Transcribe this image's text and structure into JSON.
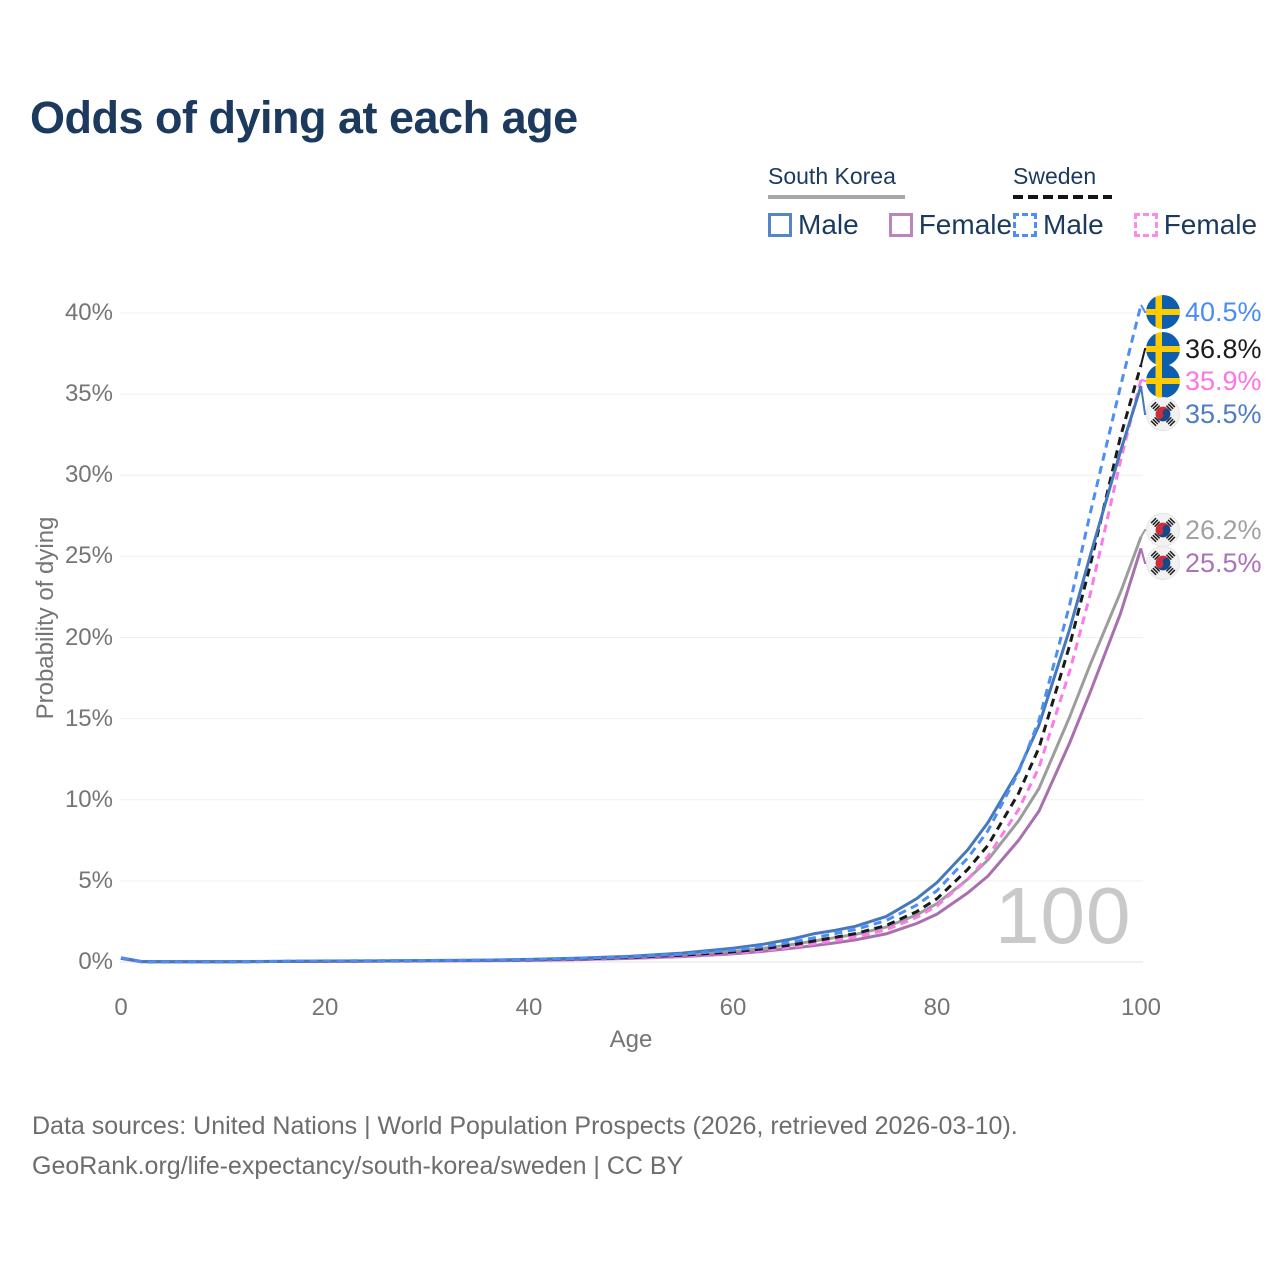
{
  "title": "Odds of dying at each age",
  "watermark": "100",
  "legend": {
    "groups": [
      {
        "country": "South Korea",
        "line": {
          "color": "#a7a7a7",
          "dashed": false
        },
        "items": [
          {
            "label": "Male",
            "color": "#5585c6",
            "dashed": false
          },
          {
            "label": "Female",
            "color": "#bb85bb",
            "dashed": false
          }
        ]
      },
      {
        "country": "Sweden",
        "line": {
          "color": "#141414",
          "dashed": true
        },
        "items": [
          {
            "label": "Male",
            "color": "#4d8ef5",
            "dashed": true
          },
          {
            "label": "Female",
            "color": "#fb8ce8",
            "dashed": true
          }
        ]
      }
    ]
  },
  "axes": {
    "y": {
      "title": "Probability of dying",
      "ticks": [
        "0%",
        "5%",
        "10%",
        "15%",
        "20%",
        "25%",
        "30%",
        "35%",
        "40%"
      ]
    },
    "x": {
      "title": "Age",
      "ticks": [
        "0",
        "20",
        "40",
        "60",
        "80",
        "100"
      ]
    }
  },
  "end_labels": [
    {
      "flag": "sweden",
      "value": "40.5%",
      "color": "#4a8cf7",
      "series": "sweden_male"
    },
    {
      "flag": "sweden",
      "value": "36.8%",
      "color": "#1b1b1b",
      "series": "sweden_combined"
    },
    {
      "flag": "sweden",
      "value": "35.9%",
      "color": "#ff74e4",
      "series": "sweden_female"
    },
    {
      "flag": "south-korea",
      "value": "35.5%",
      "color": "#4e7dc4",
      "series": "south_korea_male"
    },
    {
      "flag": "south-korea",
      "value": "26.2%",
      "color": "#a2a2a2",
      "series": "south_korea_combined"
    },
    {
      "flag": "south-korea",
      "value": "25.5%",
      "color": "#ab73b8",
      "series": "south_korea_female"
    }
  ],
  "footer": {
    "line1": "Data sources: United Nations | World Population Prospects (2026, retrieved 2026-03-10).",
    "line2": "GeoRank.org/life-expectancy/south-korea/sweden | CC BY"
  },
  "chart_data": {
    "type": "line",
    "title": "Odds of dying at each age",
    "xlabel": "Age",
    "ylabel": "Probability of dying",
    "units": "percent",
    "xlim": [
      0,
      100
    ],
    "ylim": [
      0,
      40
    ],
    "x_ticks": [
      0,
      20,
      40,
      60,
      80,
      100
    ],
    "y_ticks": [
      0,
      5,
      10,
      15,
      20,
      25,
      30,
      35,
      40
    ],
    "grid": "horizontal",
    "legend_position": "top-right",
    "ages": [
      0,
      2,
      5,
      10,
      15,
      20,
      25,
      30,
      35,
      40,
      45,
      50,
      55,
      60,
      63,
      66,
      68,
      70,
      72,
      75,
      78,
      80,
      83,
      85,
      88,
      90,
      93,
      95,
      98,
      100
    ],
    "series": [
      {
        "name": "sweden_male",
        "country": "Sweden",
        "sex": "Male",
        "style": "dashed",
        "color": "#4d8ef5",
        "end_value_pct": 40.5,
        "values": [
          0.25,
          0.02,
          0.01,
          0.01,
          0.04,
          0.07,
          0.08,
          0.09,
          0.11,
          0.15,
          0.22,
          0.32,
          0.48,
          0.72,
          0.95,
          1.25,
          1.5,
          1.75,
          2.0,
          2.55,
          3.5,
          4.4,
          6.4,
          8.1,
          11.7,
          14.9,
          22.0,
          27.6,
          35.5,
          40.5
        ]
      },
      {
        "name": "sweden_combined",
        "country": "Sweden",
        "sex": "Both",
        "style": "dashed",
        "color": "#1a1a1a",
        "end_value_pct": 36.8,
        "values": [
          0.24,
          0.02,
          0.01,
          0.01,
          0.03,
          0.05,
          0.06,
          0.08,
          0.1,
          0.13,
          0.19,
          0.28,
          0.42,
          0.62,
          0.82,
          1.08,
          1.3,
          1.52,
          1.75,
          2.25,
          3.1,
          3.9,
          5.7,
          7.2,
          10.4,
          13.2,
          19.5,
          24.4,
          32.4,
          36.8
        ]
      },
      {
        "name": "sweden_female",
        "country": "Sweden",
        "sex": "Female",
        "style": "dashed",
        "color": "#fb7ce8",
        "end_value_pct": 35.9,
        "values": [
          0.23,
          0.02,
          0.01,
          0.01,
          0.03,
          0.04,
          0.05,
          0.06,
          0.08,
          0.11,
          0.16,
          0.24,
          0.36,
          0.54,
          0.71,
          0.94,
          1.13,
          1.32,
          1.53,
          1.98,
          2.75,
          3.45,
          5.1,
          6.5,
          9.4,
          12.0,
          17.9,
          22.6,
          30.9,
          35.9
        ]
      },
      {
        "name": "south_korea_male",
        "country": "South Korea",
        "sex": "Male",
        "style": "solid",
        "color": "#4678bc",
        "end_value_pct": 35.5,
        "values": [
          0.26,
          0.03,
          0.02,
          0.02,
          0.04,
          0.06,
          0.07,
          0.09,
          0.11,
          0.16,
          0.24,
          0.36,
          0.55,
          0.85,
          1.1,
          1.45,
          1.75,
          1.95,
          2.2,
          2.8,
          3.9,
          4.9,
          6.9,
          8.6,
          11.8,
          14.6,
          20.5,
          25.0,
          31.5,
          35.5
        ]
      },
      {
        "name": "south_korea_combined",
        "country": "South Korea",
        "sex": "Both",
        "style": "solid",
        "color": "#9d9d9d",
        "end_value_pct": 26.2,
        "values": [
          0.24,
          0.03,
          0.02,
          0.02,
          0.03,
          0.05,
          0.06,
          0.08,
          0.1,
          0.13,
          0.19,
          0.28,
          0.43,
          0.65,
          0.85,
          1.1,
          1.3,
          1.5,
          1.7,
          2.15,
          2.9,
          3.6,
          5.1,
          6.3,
          8.7,
          10.7,
          15.1,
          18.3,
          22.8,
          26.2
        ]
      },
      {
        "name": "south_korea_female",
        "country": "South Korea",
        "sex": "Female",
        "style": "solid",
        "color": "#a871ae",
        "end_value_pct": 25.5,
        "values": [
          0.23,
          0.02,
          0.01,
          0.01,
          0.03,
          0.04,
          0.05,
          0.06,
          0.08,
          0.1,
          0.15,
          0.22,
          0.33,
          0.5,
          0.66,
          0.86,
          1.02,
          1.18,
          1.36,
          1.73,
          2.37,
          2.95,
          4.25,
          5.3,
          7.5,
          9.3,
          13.5,
          16.6,
          21.5,
          25.5
        ]
      }
    ]
  }
}
